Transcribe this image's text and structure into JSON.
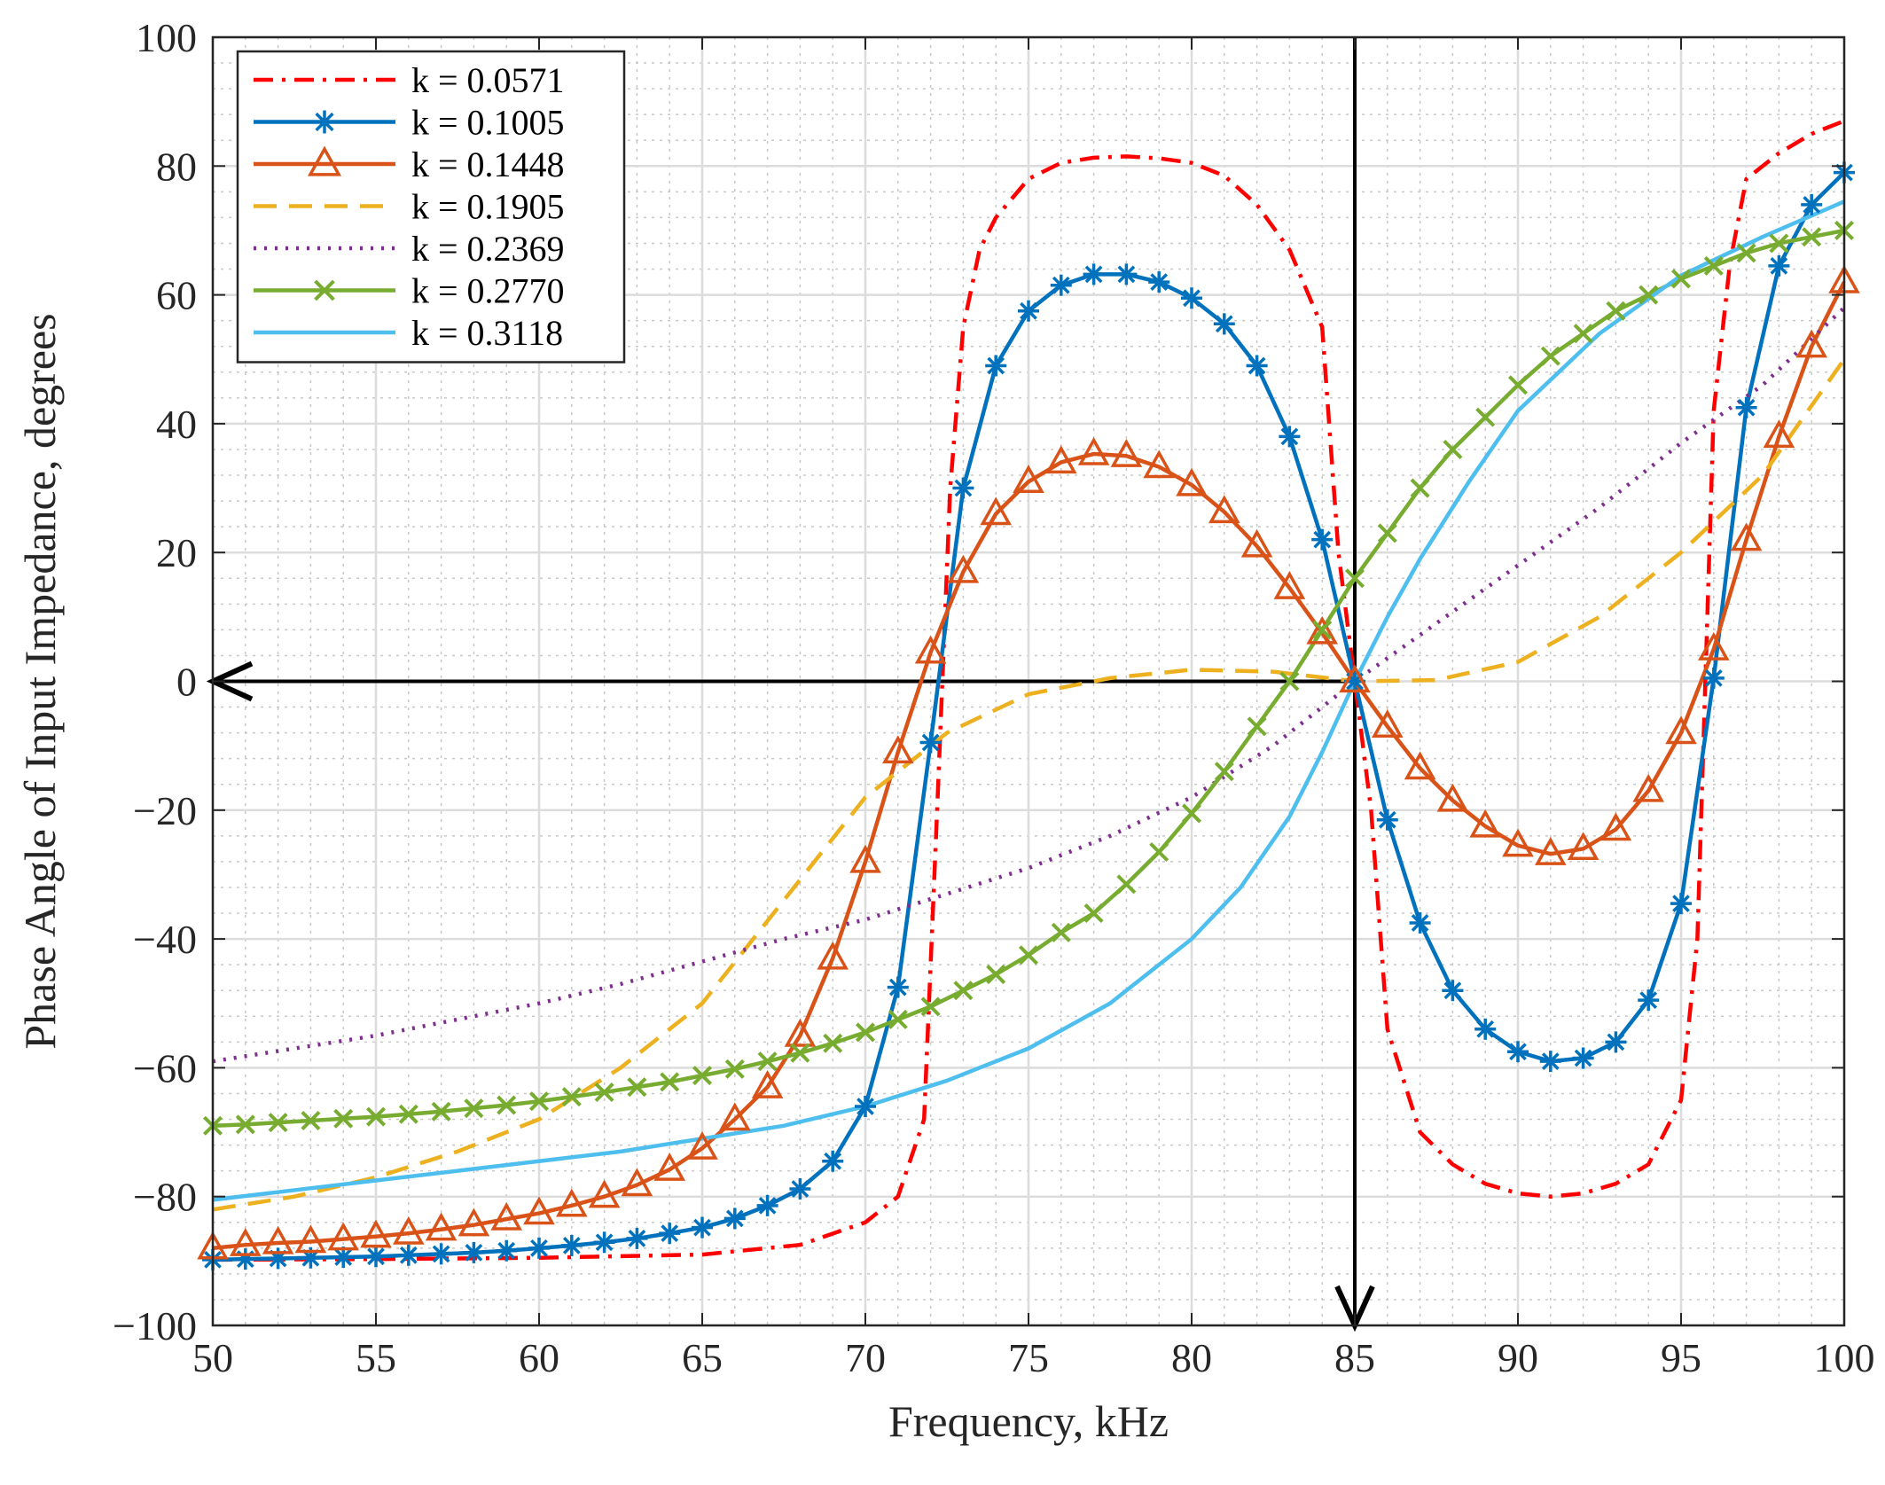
{
  "chart_data": {
    "type": "line",
    "xlabel": "Frequency, kHz",
    "ylabel": "Phase Angle of Input Impedance, degrees",
    "xlim": [
      50,
      100
    ],
    "ylim": [
      -100,
      100
    ],
    "xticks": [
      "50",
      "55",
      "60",
      "65",
      "70",
      "75",
      "80",
      "85",
      "90",
      "95",
      "100"
    ],
    "yticks": [
      "−100",
      "−80",
      "−60",
      "−40",
      "−20",
      "0",
      "20",
      "40",
      "60",
      "80",
      "100"
    ],
    "grid": true,
    "minor_grid": true,
    "legend_position": "top-left",
    "annotations": [
      {
        "type": "arrow",
        "from": [
          85,
          0
        ],
        "to": [
          50,
          0
        ],
        "description": "horizontal arrow at 0 pointing left"
      },
      {
        "type": "arrow",
        "from": [
          85,
          100
        ],
        "to": [
          85,
          -100
        ],
        "description": "vertical arrow at 85 pointing down"
      }
    ],
    "series": [
      {
        "name": "k = 0.0571",
        "color": "#FF0000",
        "style": "dashdot",
        "marker": "none",
        "x": [
          50,
          55,
          60,
          65,
          68,
          70,
          71,
          71.8,
          72.2,
          72.6,
          73,
          73.5,
          74,
          75,
          76,
          77,
          78,
          79,
          80,
          81,
          82,
          83,
          84,
          84.5,
          85,
          85.5,
          86,
          87,
          88,
          89,
          90,
          91,
          92,
          93,
          94,
          95,
          95.5,
          96,
          96.5,
          97,
          98,
          99,
          100
        ],
        "y": [
          -89.8,
          -89.7,
          -89.5,
          -89,
          -87.5,
          -84,
          -80,
          -68,
          -20,
          30,
          55,
          67,
          72,
          78,
          80.5,
          81.3,
          81.5,
          81.2,
          80.5,
          78.5,
          74,
          67,
          55,
          20,
          0,
          -20,
          -54,
          -70,
          -75,
          -78,
          -79.5,
          -80,
          -79.5,
          -78,
          -75,
          -65,
          -40,
          42,
          65,
          78,
          82,
          85,
          87
        ]
      },
      {
        "name": "k = 0.1005",
        "color": "#0072BD",
        "style": "solid",
        "marker": "asterisk",
        "x": [
          50,
          51,
          52,
          53,
          54,
          55,
          56,
          57,
          58,
          59,
          60,
          61,
          62,
          63,
          64,
          65,
          66,
          67,
          68,
          69,
          70,
          71,
          72,
          73,
          74,
          75,
          76,
          77,
          78,
          79,
          80,
          81,
          82,
          83,
          84,
          85,
          86,
          87,
          88,
          89,
          90,
          91,
          92,
          93,
          94,
          95,
          96,
          97,
          98,
          99,
          100
        ],
        "y": [
          -89.8,
          -89.7,
          -89.6,
          -89.5,
          -89.4,
          -89.3,
          -89.1,
          -88.9,
          -88.7,
          -88.4,
          -88,
          -87.6,
          -87.1,
          -86.5,
          -85.7,
          -84.8,
          -83.4,
          -81.4,
          -78.8,
          -74.5,
          -66,
          -47.5,
          -9.5,
          30,
          49,
          57.5,
          61.5,
          63.2,
          63.2,
          62,
          59.5,
          55.5,
          49,
          38,
          22,
          0,
          -21.5,
          -37.5,
          -48,
          -54,
          -57.5,
          -59,
          -58.5,
          -56,
          -49.5,
          -34.5,
          0.5,
          42.5,
          64.5,
          74,
          79
        ]
      },
      {
        "name": "k = 0.1448",
        "color": "#D95319",
        "style": "solid",
        "marker": "triangle",
        "x": [
          50,
          51,
          52,
          53,
          54,
          55,
          56,
          57,
          58,
          59,
          60,
          61,
          62,
          63,
          64,
          65,
          66,
          67,
          68,
          69,
          70,
          71,
          72,
          73,
          74,
          75,
          76,
          77,
          78,
          79,
          80,
          81,
          82,
          83,
          84,
          85,
          86,
          87,
          88,
          89,
          90,
          91,
          92,
          93,
          94,
          95,
          96,
          97,
          98,
          99,
          100
        ],
        "y": [
          -88,
          -87.5,
          -87.2,
          -87,
          -86.6,
          -86.2,
          -85.7,
          -85.1,
          -84.4,
          -83.5,
          -82.6,
          -81.4,
          -80,
          -78.2,
          -75.8,
          -72.5,
          -68,
          -63,
          -55,
          -43,
          -28,
          -11,
          4.5,
          17,
          26,
          31,
          34,
          35.3,
          35,
          33.3,
          30.5,
          26.3,
          21,
          14.5,
          7.5,
          0,
          -7,
          -13.5,
          -18.5,
          -22.5,
          -25.5,
          -26.8,
          -26,
          -23,
          -17,
          -8,
          5,
          22,
          38,
          52,
          62
        ]
      },
      {
        "name": "k = 0.1905",
        "color": "#EDB120",
        "style": "dashed",
        "marker": "none",
        "x": [
          50,
          52.5,
          55,
          57.5,
          60,
          62.5,
          65,
          67.5,
          70,
          72.5,
          75,
          77.5,
          80,
          82.5,
          85,
          87.5,
          90,
          92.5,
          95,
          97.5,
          100
        ],
        "y": [
          -82,
          -80,
          -77,
          -73,
          -68,
          -60,
          -50,
          -34,
          -18,
          -8,
          -2,
          0.5,
          1.8,
          1.5,
          0,
          0.2,
          3,
          10,
          20,
          32,
          50
        ]
      },
      {
        "name": "k = 0.2369",
        "color": "#7E2F8E",
        "style": "dotted",
        "marker": "none",
        "x": [
          50,
          52.5,
          55,
          57.5,
          60,
          62.5,
          65,
          67.5,
          70,
          72.5,
          75,
          77.5,
          80,
          82.5,
          85,
          87.5,
          90,
          92.5,
          95,
          97.5,
          100
        ],
        "y": [
          -59,
          -57,
          -55,
          -52.5,
          -50,
          -47,
          -43.5,
          -40,
          -37,
          -33,
          -29,
          -24,
          -18,
          -10,
          0,
          9,
          18,
          27,
          37,
          46,
          58
        ]
      },
      {
        "name": "k = 0.2770",
        "color": "#77AC30",
        "style": "solid",
        "marker": "x",
        "x": [
          50,
          51,
          52,
          53,
          54,
          55,
          56,
          57,
          58,
          59,
          60,
          61,
          62,
          63,
          64,
          65,
          66,
          67,
          68,
          69,
          70,
          71,
          72,
          73,
          74,
          75,
          76,
          77,
          78,
          79,
          80,
          81,
          82,
          83,
          84,
          85,
          86,
          87,
          88,
          89,
          90,
          91,
          92,
          93,
          94,
          95,
          96,
          97,
          98,
          99,
          100
        ],
        "y": [
          -69,
          -68.8,
          -68.5,
          -68.2,
          -67.9,
          -67.6,
          -67.2,
          -66.8,
          -66.3,
          -65.8,
          -65.2,
          -64.5,
          -63.8,
          -63,
          -62.2,
          -61.2,
          -60.2,
          -59,
          -57.7,
          -56.2,
          -54.5,
          -52.5,
          -50.5,
          -48,
          -45.5,
          -42.5,
          -39,
          -36,
          -31.5,
          -26.5,
          -20.5,
          -14,
          -7,
          0,
          8,
          16,
          23,
          30,
          36,
          41,
          46,
          50.5,
          54,
          57.5,
          60,
          62.5,
          64.5,
          66.5,
          68,
          69,
          70
        ]
      },
      {
        "name": "k = 0.3118",
        "color": "#4DBEEE",
        "style": "solid",
        "marker": "none",
        "x": [
          50,
          52.5,
          55,
          57.5,
          60,
          62.5,
          65,
          67.5,
          70,
          72.5,
          75,
          77.5,
          80,
          81.5,
          83,
          84,
          85,
          86,
          87,
          88.5,
          90,
          92.5,
          95,
          97.5,
          100
        ],
        "y": [
          -80.5,
          -79,
          -77.5,
          -76,
          -74.5,
          -73,
          -71,
          -69,
          -66,
          -62,
          -57,
          -50,
          -40,
          -32,
          -21,
          -11,
          0,
          10,
          19,
          31,
          42,
          54,
          63,
          69,
          74.5
        ]
      }
    ]
  }
}
